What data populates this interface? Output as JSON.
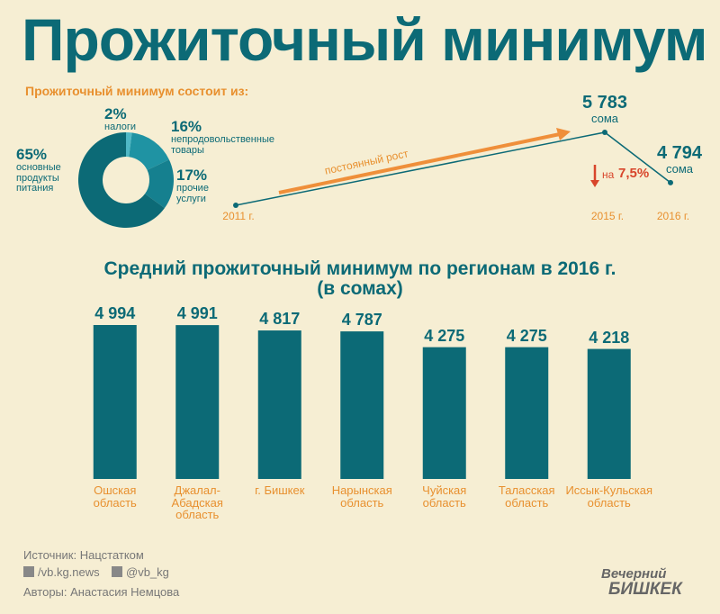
{
  "title": "Прожиточный минимум",
  "chart_data": [
    {
      "type": "pie",
      "title": "Прожиточный минимум состоит из:",
      "categories": [
        "налоги",
        "непродовольственные\nтовары",
        "прочие\nуслуги",
        "основные\nпродукты\nпитания"
      ],
      "values": [
        2,
        16,
        17,
        65
      ],
      "value_labels": [
        "2%",
        "16%",
        "17%",
        "65%"
      ],
      "colors": [
        "#4fb8c6",
        "#1f93a3",
        "#15808f",
        "#0c6a76"
      ]
    },
    {
      "type": "line",
      "x": [
        "2011 г.",
        "2015 г.",
        "2016 г."
      ],
      "values": [
        4350,
        5783,
        4794
      ],
      "value_labels": [
        null,
        "5 783",
        "4 794"
      ],
      "value_unit": "сома",
      "ylim": [
        4000,
        6000
      ],
      "color": "#0c6a76",
      "annotations": {
        "trend": "постоянный рост",
        "change_prefix": "на",
        "change": {
          "value": 7.5,
          "label": "7,5%"
        }
      }
    },
    {
      "type": "bar",
      "title": "Средний прожиточный минимум по регионам в 2016 г.\n(в сомах)",
      "categories": [
        "Ошская\nобласть",
        "Джалал-Абадская\nобласть",
        "г. Бишкек",
        "Нарынская\nобласть",
        "Чуйская\nобласть",
        "Таласская\nобласть",
        "Иссык-Кульская\nобласть"
      ],
      "values": [
        4994,
        4991,
        4817,
        4787,
        4275,
        4275,
        4218
      ],
      "value_labels": [
        "4 994",
        "4 991",
        "4 817",
        "4 787",
        "4 275",
        "4 275",
        "4 218"
      ],
      "ylim": [
        0,
        5000
      ],
      "color": "#0c6a76"
    }
  ],
  "footer": {
    "source": "Источник: Нацстатком",
    "facebook": "/vb.kg.news",
    "twitter": "@vb_kg",
    "authors": "Авторы: Анастасия Немцова",
    "logo_top": "Вечерний",
    "logo_bottom": "БИШКЕК"
  }
}
